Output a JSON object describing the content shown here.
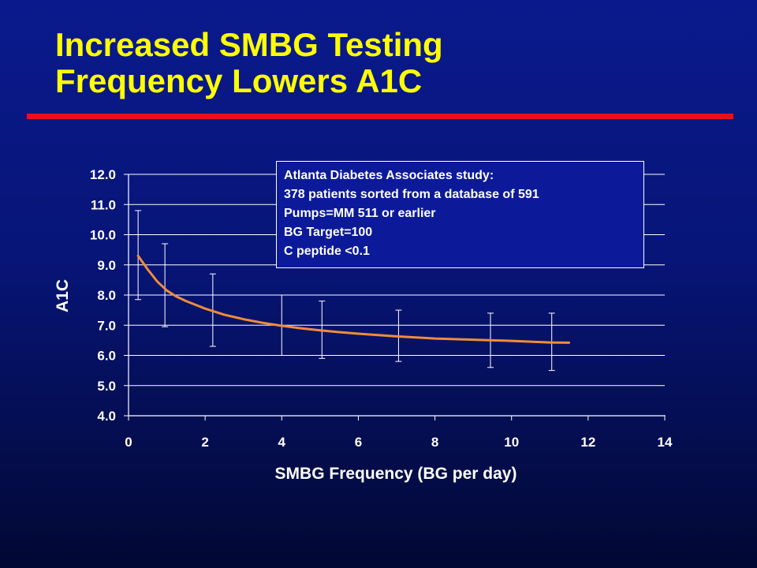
{
  "slide": {
    "title_line1": "Increased SMBG Testing",
    "title_line2": "Frequency Lowers A1C",
    "colors": {
      "title": "#ffff00",
      "rule": "#e8101a",
      "background": "#0a1a8c"
    }
  },
  "annotation": {
    "lines": [
      "Atlanta Diabetes Associates study:",
      "378 patients sorted from a database of 591",
      "Pumps=MM 511 or earlier",
      "BG Target=100",
      "C peptide <0.1"
    ]
  },
  "chart_data": {
    "type": "line",
    "title": "",
    "xlabel": "SMBG Frequency (BG per day)",
    "ylabel": "A1C",
    "xlim": [
      0,
      14
    ],
    "ylim": [
      4.0,
      12.0
    ],
    "x_ticks": [
      0,
      2,
      4,
      6,
      8,
      10,
      12,
      14
    ],
    "y_ticks": [
      4.0,
      5.0,
      6.0,
      7.0,
      8.0,
      9.0,
      10.0,
      11.0,
      12.0
    ],
    "x_tick_labels": [
      "0",
      "2",
      "4",
      "6",
      "8",
      "10",
      "12",
      "14"
    ],
    "y_tick_labels": [
      "4.0",
      "5.0",
      "6.0",
      "7.0",
      "8.0",
      "9.0",
      "10.0",
      "11.0",
      "12.0"
    ],
    "grid": "horizontal",
    "series": [
      {
        "color": "#f08c3a",
        "x": [
          0.25,
          0.5,
          0.75,
          1.0,
          1.25,
          1.5,
          2.0,
          2.5,
          3.0,
          3.5,
          4.0,
          4.5,
          5.0,
          5.5,
          6.0,
          7.0,
          8.0,
          9.0,
          10.0,
          11.0,
          11.5
        ],
        "y": [
          9.3,
          8.85,
          8.45,
          8.15,
          7.95,
          7.8,
          7.55,
          7.35,
          7.2,
          7.08,
          6.98,
          6.9,
          6.83,
          6.77,
          6.72,
          6.63,
          6.56,
          6.52,
          6.48,
          6.43,
          6.42
        ]
      }
    ],
    "error_bars": [
      {
        "x": 0.25,
        "low": 7.85,
        "high": 10.8
      },
      {
        "x": 0.95,
        "low": 6.95,
        "high": 9.7
      },
      {
        "x": 2.2,
        "low": 6.3,
        "high": 8.7
      },
      {
        "x": 4.0,
        "low": 6.0,
        "high": 8.0
      },
      {
        "x": 5.05,
        "low": 5.9,
        "high": 7.8
      },
      {
        "x": 7.05,
        "low": 5.8,
        "high": 7.5
      },
      {
        "x": 9.45,
        "low": 5.6,
        "high": 7.4
      },
      {
        "x": 11.05,
        "low": 5.5,
        "high": 7.4
      }
    ]
  }
}
